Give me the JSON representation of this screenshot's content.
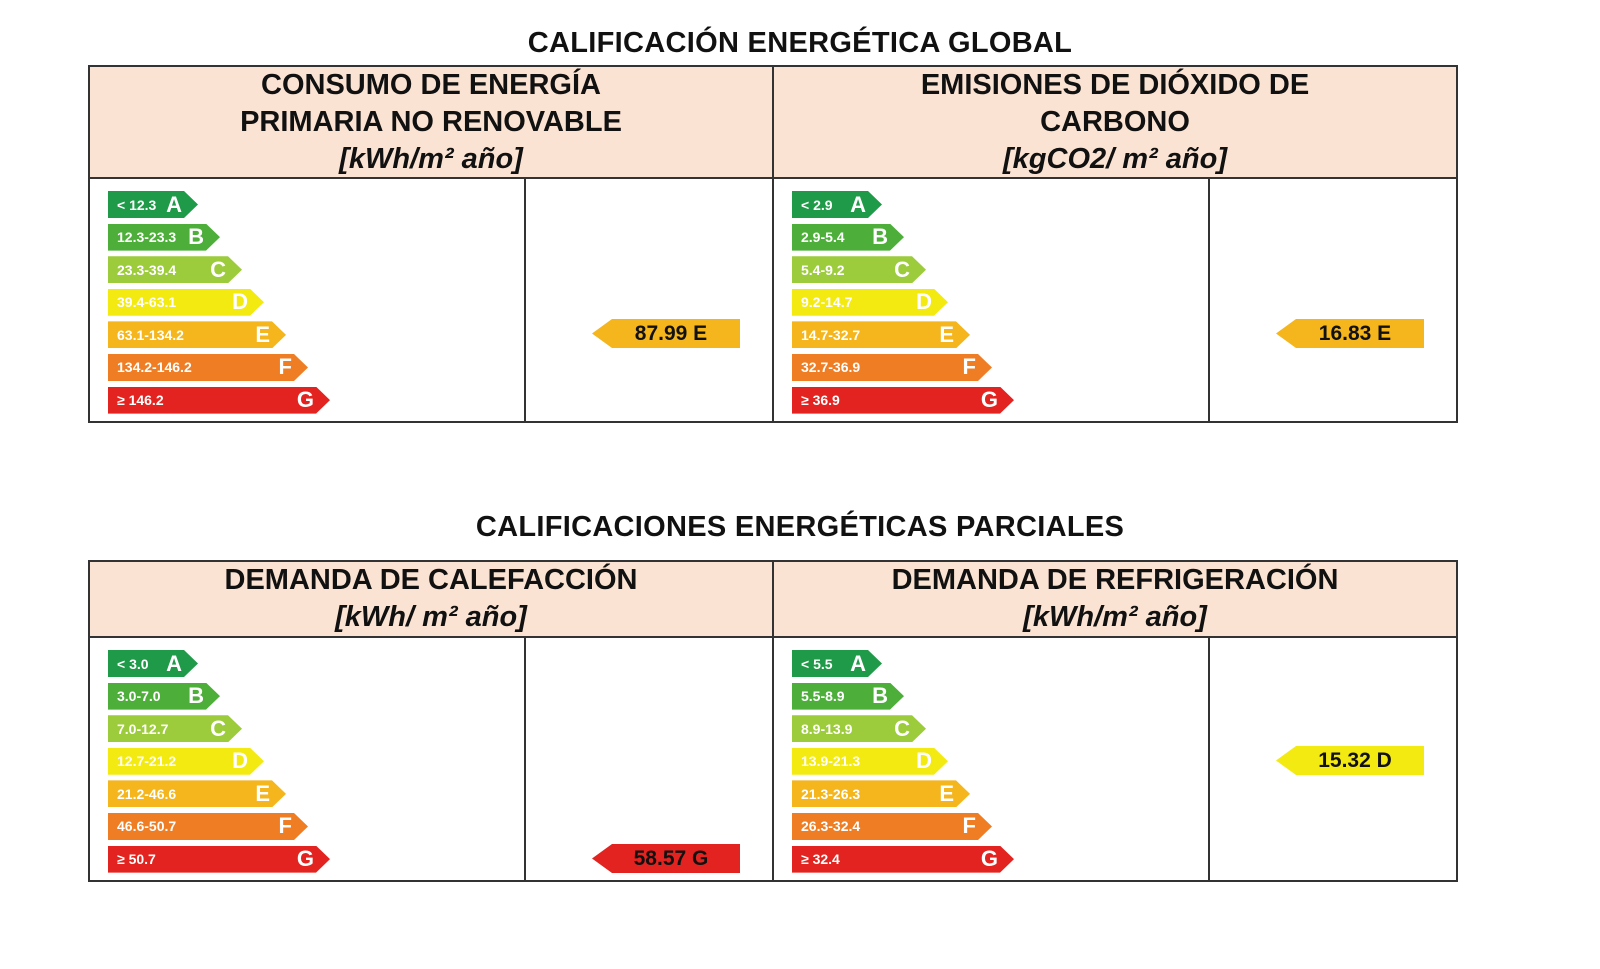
{
  "colors": {
    "A": "#1f9a48",
    "B": "#4daf3a",
    "C": "#9ccb3b",
    "D": "#f3ea12",
    "E": "#f4b51d",
    "F": "#ef7d23",
    "G": "#e2231f",
    "header_bg": "#fbe3d3"
  },
  "global": {
    "title": "CALIFICACIÓN ENERGÉTICA GLOBAL",
    "left": {
      "heading_line1": "CONSUMO DE ENERGÍA",
      "heading_line2": "PRIMARIA NO RENOVABLE",
      "unit": "[kWh/m² año]",
      "scale": [
        "< 12.3",
        "12.3-23.3",
        "23.3-39.4",
        "39.4-63.1",
        "63.1-134.2",
        "134.2-146.2",
        "≥ 146.2"
      ],
      "value": "87.99 E",
      "rating": "E"
    },
    "right": {
      "heading_line1": "EMISIONES DE DIÓXIDO DE",
      "heading_line2": "CARBONO",
      "unit": "[kgCO2/ m² año]",
      "scale": [
        "< 2.9",
        "2.9-5.4",
        "5.4-9.2",
        "9.2-14.7",
        "14.7-32.7",
        "32.7-36.9",
        "≥ 36.9"
      ],
      "value": "16.83 E",
      "rating": "E"
    }
  },
  "partial": {
    "title": "CALIFICACIONES ENERGÉTICAS PARCIALES",
    "left": {
      "heading_line1": "DEMANDA DE CALEFACCIÓN",
      "unit": "[kWh/ m² año]",
      "scale": [
        "< 3.0",
        "3.0-7.0",
        "7.0-12.7",
        "12.7-21.2",
        "21.2-46.6",
        "46.6-50.7",
        "≥ 50.7"
      ],
      "value": "58.57 G",
      "rating": "G"
    },
    "right": {
      "heading_line1": "DEMANDA DE REFRIGERACIÓN",
      "unit": "[kWh/m² año]",
      "scale": [
        "< 5.5",
        "5.5-8.9",
        "8.9-13.9",
        "13.9-21.3",
        "21.3-26.3",
        "26.3-32.4",
        "≥ 32.4"
      ],
      "value": "15.32 D",
      "rating": "D"
    }
  },
  "letters": [
    "A",
    "B",
    "C",
    "D",
    "E",
    "F",
    "G"
  ]
}
